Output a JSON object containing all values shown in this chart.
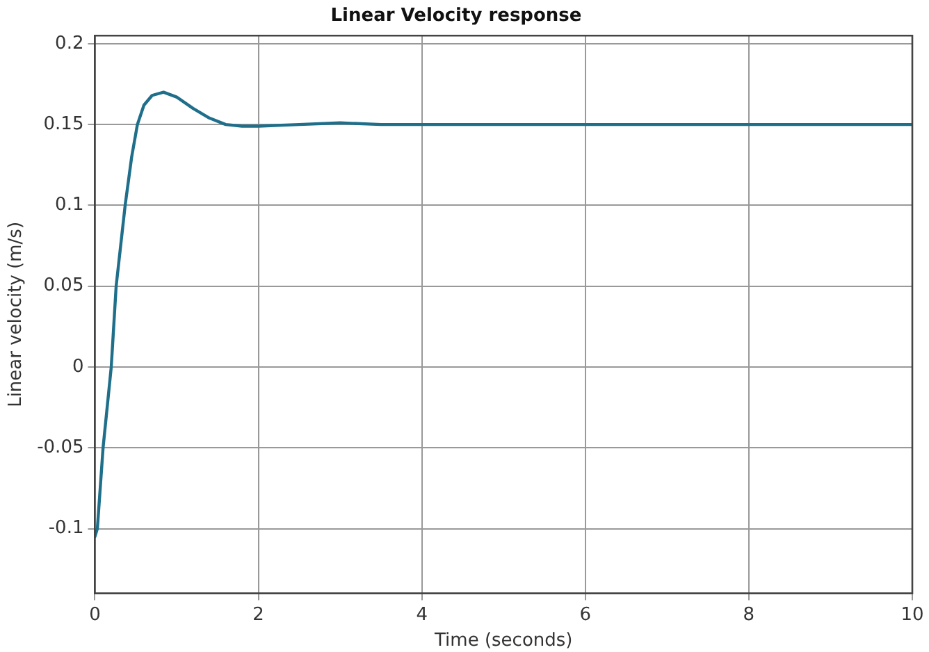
{
  "chart_data": {
    "type": "line",
    "title": "Linear Velocity response",
    "xlabel": "Time (seconds)",
    "ylabel": "Linear velocity (m/s)",
    "series": [
      {
        "color": "#1f6f8b",
        "x": [
          0,
          0.03,
          0.1,
          0.2,
          0.26,
          0.37,
          0.45,
          0.52,
          0.6,
          0.7,
          0.84,
          1.0,
          1.2,
          1.4,
          1.6,
          1.8,
          2.0,
          2.5,
          3.0,
          3.5,
          4,
          6,
          8,
          10
        ],
        "values": [
          -0.105,
          -0.1,
          -0.05,
          0,
          0.05,
          0.1,
          0.13,
          0.15,
          0.162,
          0.168,
          0.17,
          0.167,
          0.16,
          0.154,
          0.15,
          0.149,
          0.149,
          0.15,
          0.151,
          0.15,
          0.15,
          0.15,
          0.15,
          0.15
        ]
      }
    ],
    "xlim": [
      0,
      10
    ],
    "xticks": [
      0,
      2,
      4,
      6,
      8,
      10
    ],
    "ylim": [
      -0.14,
      0.205
    ],
    "yticks": [
      -0.1,
      -0.05,
      0,
      0.05,
      0.1,
      0.15,
      0.2
    ],
    "grid": true,
    "marker": "none",
    "line_style": "solid"
  }
}
